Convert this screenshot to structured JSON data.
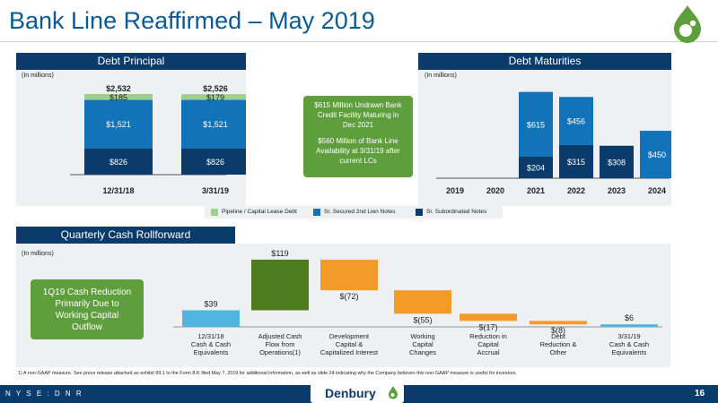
{
  "page": {
    "title": "Bank Line Reaffirmed – May 2019",
    "footnote": "1) A non-GAAP measure. See press release attached as exhibit 99.1 to the Form 8-K filed May 7, 2019 for additional information, as well as slide 24 indicating why the Company believes this non-GAAP measure is useful for investors.",
    "ticker": "N Y S E : D N R",
    "page_number": "16",
    "brand_name": "Denbury"
  },
  "debt_principal": {
    "tab": "Debt Principal",
    "units": "(In millions)"
  },
  "debt_maturities": {
    "tab": "Debt Maturities",
    "units": "(In millions)"
  },
  "callout_bank": {
    "line1": "$615 Million Undrawn Bank Credit Facility Maturing in Dec 2021",
    "line2": "$560 Million of Bank Line Availability at 3/31/19 after current LCs"
  },
  "legend": {
    "pipeline": "Pipeline / Capital Lease Debt",
    "secured": "Sr. Secured 2nd Lien Notes",
    "subordinated": "Sr. Subordinated Notes"
  },
  "cash_rollforward": {
    "tab": "Quarterly Cash Rollforward",
    "units": "(In millions)",
    "callout": "1Q19 Cash Reduction Primarily Due to Working Capital Outflow"
  },
  "colors": {
    "navy": "#0b3b6b",
    "secured_blue": "#1273b8",
    "pipeline_green": "#9fcf8c",
    "callout_green": "#5f9e3d",
    "waterfall_blue": "#4fb5de",
    "waterfall_green": "#4d7b1e",
    "waterfall_orange": "#f29a2a",
    "title_blue": "#0b5a91"
  },
  "chart_data": [
    {
      "type": "bar",
      "name": "Debt Principal",
      "categories": [
        "12/31/18",
        "3/31/19"
      ],
      "series": [
        {
          "name": "Sr. Subordinated Notes",
          "values": [
            826,
            826
          ]
        },
        {
          "name": "Sr. Secured 2nd Lien Notes",
          "values": [
            1521,
            1521
          ]
        },
        {
          "name": "Pipeline / Capital Lease Debt",
          "values": [
            185,
            179
          ]
        }
      ],
      "data_labels": [
        [
          "$826",
          "$1,521",
          "$185"
        ],
        [
          "$826",
          "$1,521",
          "$179"
        ]
      ],
      "totals": [
        "$2,532",
        "$2,526"
      ],
      "stacked": true,
      "ylim": [
        0,
        2700
      ]
    },
    {
      "type": "bar",
      "name": "Debt Maturities",
      "categories": [
        "2019",
        "2020",
        "2021",
        "2022",
        "2023",
        "2024"
      ],
      "series": [
        {
          "name": "Sr. Subordinated Notes",
          "values": [
            0,
            0,
            204,
            315,
            308,
            0
          ]
        },
        {
          "name": "Bank / Sr. Secured",
          "values": [
            0,
            0,
            615,
            456,
            0,
            450
          ]
        }
      ],
      "data_labels": [
        [
          "",
          ""
        ],
        [
          "",
          ""
        ],
        [
          "$204",
          "$615"
        ],
        [
          "$315",
          "$456"
        ],
        [
          "$308",
          ""
        ],
        [
          "",
          "$450"
        ]
      ],
      "stacked": true,
      "ylim": [
        0,
        850
      ]
    },
    {
      "type": "bar",
      "name": "Quarterly Cash Rollforward",
      "categories": [
        "12/31/18\nCash & Cash\nEquivalents",
        "Adjusted Cash\nFlow from\nOperations(1)",
        "Development\nCapital &\nCapitalized Interest",
        "Working\nCapital\nChanges",
        "Reduction in\nCapital\nAccrual",
        "Debt\nReduction &\nOther",
        "3/31/19\nCash & Cash\nEquivalents"
      ],
      "values": [
        39,
        119,
        -72,
        -55,
        -17,
        -8,
        6
      ],
      "labels": [
        "$39",
        "$119",
        "$(72)",
        "$(55)",
        "$(17)",
        "$(8)",
        "$6"
      ],
      "waterfall": true,
      "ylim": [
        0,
        160
      ]
    }
  ]
}
